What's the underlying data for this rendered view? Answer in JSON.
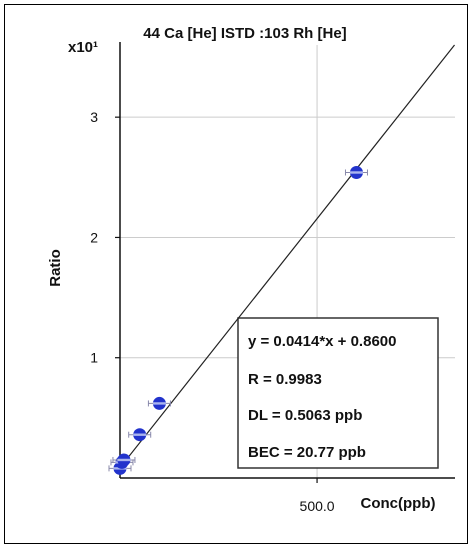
{
  "chart_data": {
    "type": "scatter",
    "title": "44 Ca [He] ISTD :103 Rh [He]",
    "xlabel": "Conc(ppb)",
    "ylabel": "Ratio",
    "y_multiplier_label": "x10¹",
    "y_scale_factor": 10,
    "xlim": [
      0,
      850
    ],
    "ylim": [
      0,
      36
    ],
    "x_ticks": [
      {
        "value": 500,
        "label": "500.0"
      }
    ],
    "y_ticks": [
      {
        "value": 10,
        "label": "1"
      },
      {
        "value": 20,
        "label": "2"
      },
      {
        "value": 30,
        "label": "3"
      }
    ],
    "grid": true,
    "legend": "none",
    "points": [
      {
        "x": 0,
        "y": 0.8
      },
      {
        "x": 5,
        "y": 1.3
      },
      {
        "x": 10,
        "y": 1.5
      },
      {
        "x": 50,
        "y": 3.6
      },
      {
        "x": 100,
        "y": 6.2
      },
      {
        "x": 600,
        "y": 25.4
      }
    ],
    "fit": {
      "slope": 0.0414,
      "intercept": 0.86
    },
    "annotations": [
      "y = 0.0414*x + 0.8600",
      "R = 0.9983",
      "DL = 0.5063 ppb",
      "BEC = 20.77 ppb"
    ],
    "colors": {
      "points": "#2233cc",
      "point_band": "#aab4ee",
      "line": "#222222",
      "grid": "#cccccc"
    }
  }
}
